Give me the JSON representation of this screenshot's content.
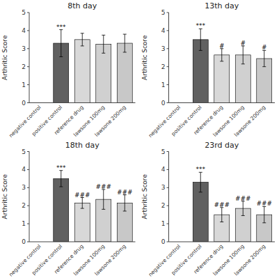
{
  "chart_data": [
    {
      "type": "bar",
      "title": "8th day",
      "y_label": "Arthritic Score",
      "categories": [
        "negative control",
        "positive control",
        "reference drug",
        "lawsone 100mg",
        "lawsone 200mg"
      ],
      "values": [
        0.0,
        3.3,
        3.5,
        3.25,
        3.3
      ],
      "errors": [
        0.0,
        0.75,
        0.35,
        0.5,
        0.5
      ],
      "colors": [
        "#e8e8e8",
        "#606060",
        "#d8d8d8",
        "#d0d0d0",
        "#c8c8c8"
      ],
      "annotations": [
        {
          "text": "***",
          "x": "positive control",
          "y": 4.05
        }
      ],
      "ylim": [
        0,
        5
      ],
      "yticks": [
        0,
        1,
        2,
        3,
        4,
        5
      ],
      "grid": false
    },
    {
      "type": "bar",
      "title": "13th day",
      "y_label": "Arthritic Score",
      "categories": [
        "negative control",
        "positive control",
        "reference drug",
        "lawsone 100mg",
        "lawsone 200mg"
      ],
      "values": [
        0.0,
        3.5,
        2.65,
        2.65,
        2.45
      ],
      "errors": [
        0.0,
        0.6,
        0.35,
        0.5,
        0.45
      ],
      "colors": [
        "#e8e8e8",
        "#606060",
        "#d8d8d8",
        "#d0d0d0",
        "#c8c8c8"
      ],
      "annotations": [
        {
          "text": "***",
          "x": "positive control",
          "y": 4.1
        },
        {
          "text": "#",
          "x": "reference drug",
          "y": 3.0
        },
        {
          "text": "#",
          "x": "lawsone 100mg",
          "y": 3.15
        },
        {
          "text": "#",
          "x": "lawsone 200mg",
          "y": 2.9
        }
      ],
      "ylim": [
        0,
        5
      ],
      "yticks": [
        0,
        1,
        2,
        3,
        4,
        5
      ],
      "grid": false
    },
    {
      "type": "bar",
      "title": "18th day",
      "y_label": "Arthritic Score",
      "categories": [
        "negative control",
        "positive control",
        "reference drug",
        "lawsone 100mg",
        "lawsone 200mg"
      ],
      "values": [
        0.0,
        3.5,
        2.15,
        2.35,
        2.15
      ],
      "errors": [
        0.0,
        0.45,
        0.3,
        0.55,
        0.45
      ],
      "colors": [
        "#e8e8e8",
        "#606060",
        "#d8d8d8",
        "#d0d0d0",
        "#c8c8c8"
      ],
      "annotations": [
        {
          "text": "***",
          "x": "positive control",
          "y": 3.95
        },
        {
          "text": "###",
          "x": "reference drug",
          "y": 2.45
        },
        {
          "text": "###",
          "x": "lawsone 100mg",
          "y": 2.9
        },
        {
          "text": "###",
          "x": "lawsone 200mg",
          "y": 2.6
        }
      ],
      "ylim": [
        0,
        5
      ],
      "yticks": [
        0,
        1,
        2,
        3,
        4,
        5
      ],
      "grid": false
    },
    {
      "type": "bar",
      "title": "23rd day",
      "y_label": "Arthritic Score",
      "categories": [
        "negative control",
        "positive control",
        "reference drug",
        "lawsone 100mg",
        "lawsone 200mg"
      ],
      "values": [
        0.0,
        3.3,
        1.5,
        1.85,
        1.5
      ],
      "errors": [
        0.0,
        0.55,
        0.4,
        0.4,
        0.45
      ],
      "colors": [
        "#e8e8e8",
        "#606060",
        "#d8d8d8",
        "#d0d0d0",
        "#c8c8c8"
      ],
      "annotations": [
        {
          "text": "***",
          "x": "positive control",
          "y": 3.85
        },
        {
          "text": "###",
          "x": "reference drug",
          "y": 1.9
        },
        {
          "text": "###",
          "x": "lawsone 100mg",
          "y": 2.25
        },
        {
          "text": "###",
          "x": "lawsone 200mg",
          "y": 1.95
        }
      ],
      "ylim": [
        0,
        5
      ],
      "yticks": [
        0,
        1,
        2,
        3,
        4,
        5
      ],
      "grid": false
    }
  ]
}
